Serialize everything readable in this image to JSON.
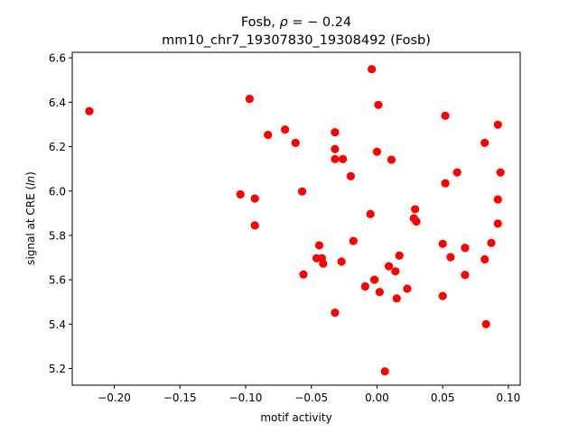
{
  "chart_data": {
    "type": "scatter",
    "title_line1_prefix": "Fosb, ",
    "title_line1_rho": "ρ",
    "title_line1_suffix": " = − 0.24",
    "title_line2": "mm10_chr7_19307830_19308492 (Fosb)",
    "xlabel": "motif activity",
    "ylabel_prefix": "signal at CRE (",
    "ylabel_italic": "ln",
    "ylabel_suffix": ")",
    "xlim": [
      -0.232,
      0.109
    ],
    "ylim": [
      5.125,
      6.625
    ],
    "xticks": [
      -0.2,
      -0.15,
      -0.1,
      -0.05,
      0.0,
      0.05,
      0.1
    ],
    "xtick_labels": [
      "−0.20",
      "−0.15",
      "−0.10",
      "−0.05",
      "0.00",
      "0.05",
      "0.10"
    ],
    "yticks": [
      5.2,
      5.4,
      5.6,
      5.8,
      6.0,
      6.2,
      6.4,
      6.6
    ],
    "ytick_labels": [
      "5.2",
      "5.4",
      "5.6",
      "5.8",
      "6.0",
      "6.2",
      "6.4",
      "6.6"
    ],
    "marker_color": "#ff0000",
    "grid": false,
    "points": [
      {
        "x": -0.219,
        "y": 6.36
      },
      {
        "x": -0.097,
        "y": 6.415
      },
      {
        "x": -0.083,
        "y": 6.253
      },
      {
        "x": -0.07,
        "y": 6.277
      },
      {
        "x": -0.062,
        "y": 6.217
      },
      {
        "x": -0.104,
        "y": 5.985
      },
      {
        "x": -0.093,
        "y": 5.966
      },
      {
        "x": -0.093,
        "y": 5.845
      },
      {
        "x": -0.057,
        "y": 5.998
      },
      {
        "x": -0.056,
        "y": 5.624
      },
      {
        "x": -0.044,
        "y": 5.755
      },
      {
        "x": -0.046,
        "y": 5.697
      },
      {
        "x": -0.042,
        "y": 5.697
      },
      {
        "x": -0.041,
        "y": 5.673
      },
      {
        "x": -0.032,
        "y": 6.265
      },
      {
        "x": -0.032,
        "y": 6.189
      },
      {
        "x": -0.032,
        "y": 6.144
      },
      {
        "x": -0.026,
        "y": 6.144
      },
      {
        "x": -0.02,
        "y": 6.067
      },
      {
        "x": -0.018,
        "y": 5.775
      },
      {
        "x": -0.027,
        "y": 5.682
      },
      {
        "x": -0.032,
        "y": 5.452
      },
      {
        "x": -0.004,
        "y": 6.549
      },
      {
        "x": 0.001,
        "y": 6.388
      },
      {
        "x": 0.0,
        "y": 6.177
      },
      {
        "x": 0.011,
        "y": 6.141
      },
      {
        "x": -0.005,
        "y": 5.896
      },
      {
        "x": -0.009,
        "y": 5.57
      },
      {
        "x": -0.002,
        "y": 5.6
      },
      {
        "x": 0.002,
        "y": 5.545
      },
      {
        "x": 0.009,
        "y": 5.661
      },
      {
        "x": 0.014,
        "y": 5.638
      },
      {
        "x": 0.017,
        "y": 5.709
      },
      {
        "x": 0.015,
        "y": 5.516
      },
      {
        "x": 0.023,
        "y": 5.56
      },
      {
        "x": 0.028,
        "y": 5.877
      },
      {
        "x": 0.029,
        "y": 5.918
      },
      {
        "x": 0.03,
        "y": 5.863
      },
      {
        "x": 0.006,
        "y": 5.187
      },
      {
        "x": 0.052,
        "y": 6.339
      },
      {
        "x": 0.052,
        "y": 6.035
      },
      {
        "x": 0.061,
        "y": 6.084
      },
      {
        "x": 0.05,
        "y": 5.762
      },
      {
        "x": 0.056,
        "y": 5.702
      },
      {
        "x": 0.05,
        "y": 5.527
      },
      {
        "x": 0.067,
        "y": 5.744
      },
      {
        "x": 0.067,
        "y": 5.622
      },
      {
        "x": 0.082,
        "y": 6.217
      },
      {
        "x": 0.092,
        "y": 6.299
      },
      {
        "x": 0.094,
        "y": 6.084
      },
      {
        "x": 0.092,
        "y": 5.962
      },
      {
        "x": 0.092,
        "y": 5.853
      },
      {
        "x": 0.087,
        "y": 5.766
      },
      {
        "x": 0.082,
        "y": 5.692
      },
      {
        "x": 0.083,
        "y": 5.4
      }
    ]
  }
}
